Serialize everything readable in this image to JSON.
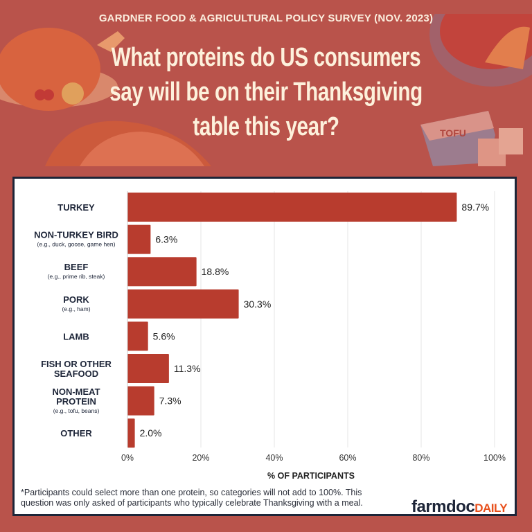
{
  "header": {
    "subtitle": "GARDNER FOOD & AGRICULTURAL POLICY SURVEY (NOV. 2023)",
    "title": "What proteins do US consumers say will be on their Thanksgiving table this year?",
    "tofu_label": "TOFU"
  },
  "chart_data": {
    "type": "bar",
    "orientation": "horizontal",
    "categories": [
      {
        "label": "TURKEY",
        "sub": ""
      },
      {
        "label": "NON-TURKEY BIRD",
        "sub": "(e.g., duck, goose, game hen)"
      },
      {
        "label": "BEEF",
        "sub": "(e.g., prime rib, steak)"
      },
      {
        "label": "PORK",
        "sub": "(e.g., ham)"
      },
      {
        "label": "LAMB",
        "sub": ""
      },
      {
        "label": "FISH OR OTHER SEAFOOD",
        "sub": ""
      },
      {
        "label": "NON-MEAT PROTEIN",
        "sub": "(e.g., tofu, beans)"
      },
      {
        "label": "OTHER",
        "sub": ""
      }
    ],
    "values": [
      89.7,
      6.3,
      18.8,
      30.3,
      5.6,
      11.3,
      7.3,
      2.0
    ],
    "data_labels": [
      "89.7%",
      "6.3%",
      "18.8%",
      "30.3%",
      "5.6%",
      "11.3%",
      "7.3%",
      "2.0%"
    ],
    "xlabel": "% OF PARTICIPANTS",
    "xlim": [
      0,
      100
    ],
    "xticks": [
      "0%",
      "20%",
      "40%",
      "60%",
      "80%",
      "100%"
    ],
    "grid": true,
    "bar_color": "#b83c2e"
  },
  "footnote": "*Participants could select more than one protein, so categories will not add to 100%. This question was only asked of participants who typically celebrate Thanksgiving with a meal.",
  "logo": {
    "part1": "farmdoc",
    "part2": "DAILY"
  }
}
